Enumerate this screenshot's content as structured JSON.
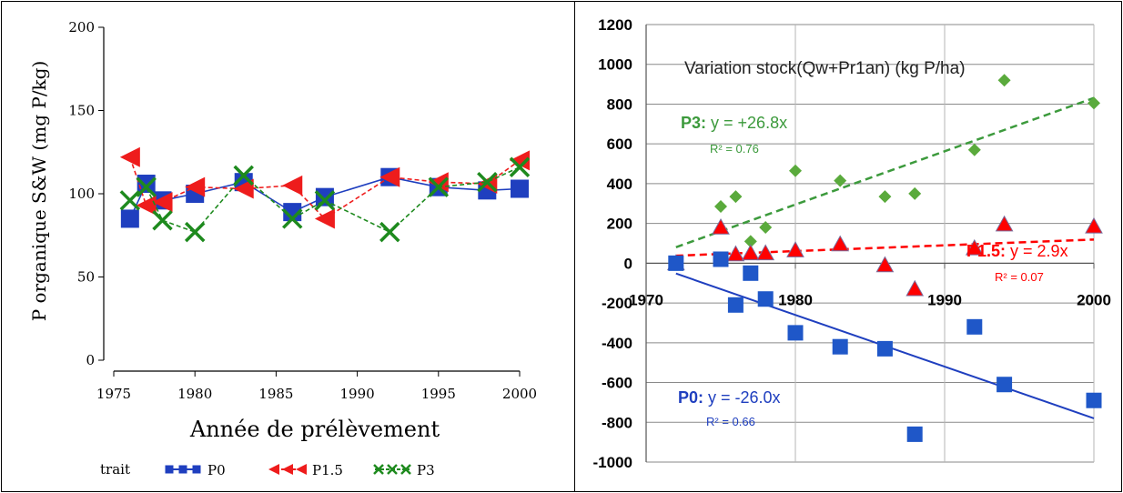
{
  "chart_data": [
    {
      "type": "line",
      "title": "",
      "xlabel": "Année de prélèvement",
      "ylabel": "P organique S&W (mg P/kg)",
      "xlim": [
        1975,
        2000
      ],
      "ylim": [
        0,
        200
      ],
      "xticks": [
        1975,
        1980,
        1985,
        1990,
        1995,
        2000
      ],
      "yticks": [
        0,
        50,
        100,
        150,
        200
      ],
      "legend_title": "trait",
      "legend_position": "bottom",
      "series": [
        {
          "name": "P0",
          "color": "#1f3fbf",
          "marker": "square",
          "dash": "solid",
          "x": [
            1976,
            1977,
            1978,
            1980,
            1983,
            1986,
            1988,
            1992,
            1995,
            1998,
            2000
          ],
          "y": [
            85,
            106,
            96,
            100,
            107,
            89,
            98,
            110,
            104,
            102,
            103
          ]
        },
        {
          "name": "P1.5",
          "color": "#ee1c1c",
          "marker": "triangle-left",
          "dash": "dashed",
          "x": [
            1976,
            1977,
            1978,
            1980,
            1983,
            1986,
            1988,
            1992,
            1995,
            1998,
            2000
          ],
          "y": [
            122,
            93,
            95,
            104,
            103,
            105,
            85,
            110,
            107,
            106,
            120
          ]
        },
        {
          "name": "P3",
          "color": "#1e8a1e",
          "marker": "x",
          "dash": "dashed",
          "x": [
            1976,
            1977,
            1978,
            1980,
            1983,
            1986,
            1988,
            1992,
            1995,
            1998,
            2000
          ],
          "y": [
            96,
            104,
            84,
            77,
            111,
            85,
            96,
            77,
            104,
            107,
            116
          ]
        }
      ]
    },
    {
      "type": "scatter",
      "title": "Variation stock(Qw+Pr1an) (kg P/ha)",
      "xlabel": "",
      "ylabel": "",
      "xlim": [
        1970,
        2000
      ],
      "ylim": [
        -1000,
        1200
      ],
      "xticks": [
        1970,
        1980,
        1990,
        2000
      ],
      "yticks": [
        -1000,
        -800,
        -600,
        -400,
        -200,
        0,
        200,
        400,
        600,
        800,
        1000,
        1200
      ],
      "grid": true,
      "series": [
        {
          "name": "P3",
          "color": "#5aaa3c",
          "marker": "diamond",
          "x": [
            1975,
            1976,
            1977,
            1978,
            1980,
            1983,
            1986,
            1988,
            1992,
            1994,
            2000
          ],
          "y": [
            285,
            335,
            110,
            180,
            465,
            415,
            335,
            350,
            570,
            920,
            805
          ],
          "fit": {
            "slope": 26.8,
            "intercept_x": 1969,
            "equation_label": "P3:",
            "equation_rest": " y = +26.8x",
            "r2": "R² = 0.76",
            "color": "#3c9a3c"
          }
        },
        {
          "name": "P1.5",
          "color": "#ff0000",
          "marker": "triangle",
          "x": [
            1972,
            1975,
            1976,
            1977,
            1978,
            1980,
            1983,
            1986,
            1988,
            1992,
            1994,
            2000
          ],
          "y": [
            0,
            180,
            45,
            50,
            50,
            65,
            95,
            -10,
            -130,
            75,
            195,
            185
          ],
          "fit": {
            "slope": 2.9,
            "intercept_x": 1959,
            "equation_label": "P1.5:",
            "equation_rest": " y = 2.9x",
            "r2": "R² = 0.07",
            "color": "#ff0000"
          }
        },
        {
          "name": "P0",
          "color": "#1f57c8",
          "marker": "square",
          "x": [
            1972,
            1975,
            1976,
            1977,
            1978,
            1980,
            1983,
            1986,
            1988,
            1992,
            1994,
            2000
          ],
          "y": [
            0,
            20,
            -210,
            -50,
            -180,
            -350,
            -420,
            -430,
            -860,
            -320,
            -610,
            -690
          ],
          "fit": {
            "slope": -26.0,
            "intercept_x": 1970,
            "equation_label": "P0:",
            "equation_rest": " y = -26.0x",
            "r2": "R² = 0.66",
            "color": "#1f3fbf"
          }
        }
      ]
    }
  ]
}
